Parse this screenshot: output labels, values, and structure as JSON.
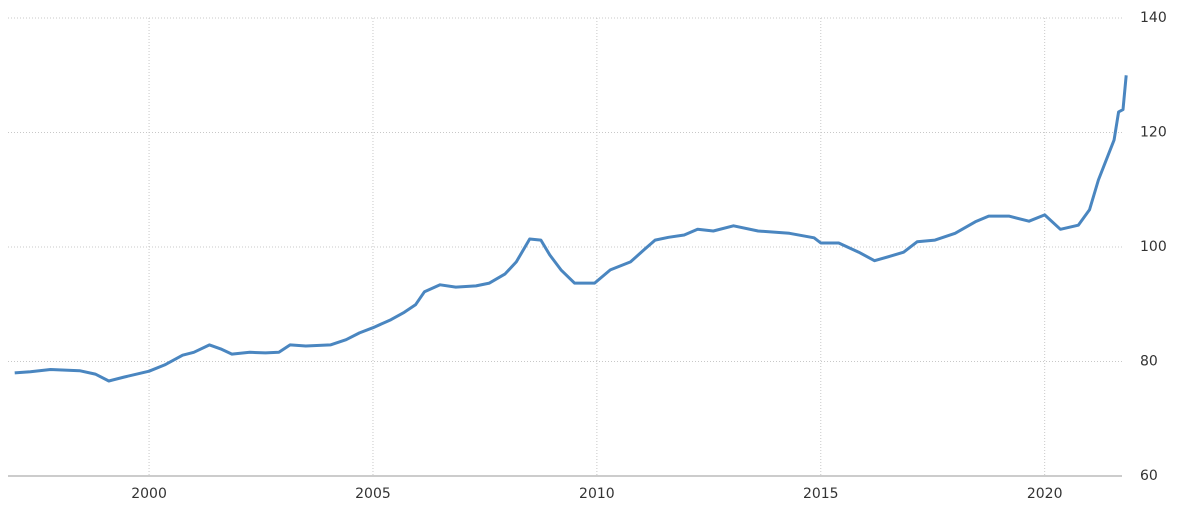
{
  "chart_data": {
    "type": "line",
    "x": [
      1997.0,
      1997.35,
      1997.8,
      1998.45,
      1998.8,
      1999.1,
      1999.45,
      2000.0,
      2000.35,
      2000.75,
      2001.0,
      2001.35,
      2001.6,
      2001.85,
      2002.25,
      2002.6,
      2002.9,
      2003.15,
      2003.5,
      2004.05,
      2004.4,
      2004.7,
      2005.0,
      2005.4,
      2005.7,
      2005.95,
      2006.15,
      2006.5,
      2006.85,
      2007.3,
      2007.6,
      2007.95,
      2008.2,
      2008.5,
      2008.75,
      2008.95,
      2009.2,
      2009.5,
      2009.95,
      2010.3,
      2010.75,
      2011.05,
      2011.3,
      2011.6,
      2011.95,
      2012.25,
      2012.6,
      2013.05,
      2013.6,
      2014.3,
      2014.85,
      2015.0,
      2015.4,
      2015.85,
      2016.2,
      2016.55,
      2016.85,
      2017.15,
      2017.55,
      2018.0,
      2018.45,
      2018.75,
      2019.2,
      2019.65,
      2020.0,
      2020.35,
      2020.75,
      2021.0,
      2021.2,
      2021.55,
      2021.65,
      2021.75,
      2021.82
    ],
    "series": [
      {
        "color": "#4a86c0",
        "values": [
          78.0,
          78.2,
          78.6,
          78.4,
          77.8,
          76.6,
          77.3,
          78.3,
          79.4,
          81.1,
          81.6,
          82.9,
          82.2,
          81.3,
          81.6,
          81.5,
          81.6,
          82.9,
          82.7,
          82.9,
          83.8,
          85.0,
          85.9,
          87.3,
          88.6,
          89.9,
          92.2,
          93.4,
          93.0,
          93.2,
          93.7,
          95.3,
          97.4,
          101.4,
          101.2,
          98.6,
          96.0,
          93.7,
          93.7,
          96.0,
          97.4,
          99.5,
          101.2,
          101.7,
          102.1,
          103.1,
          102.8,
          103.7,
          102.8,
          102.4,
          101.6,
          100.7,
          100.7,
          99.1,
          97.6,
          98.4,
          99.1,
          100.9,
          101.2,
          102.4,
          104.4,
          105.4,
          105.4,
          104.5,
          105.6,
          103.1,
          103.8,
          106.5,
          111.7,
          118.7,
          123.6,
          124.0,
          130.0
        ]
      }
    ],
    "xlim": [
      1996.85,
      2021.95
    ],
    "xticks": [
      2000,
      2005,
      2010,
      2015,
      2020
    ],
    "ylim": [
      60,
      140
    ],
    "yticks": [
      60,
      80,
      100,
      120,
      140
    ],
    "grid": true
  }
}
